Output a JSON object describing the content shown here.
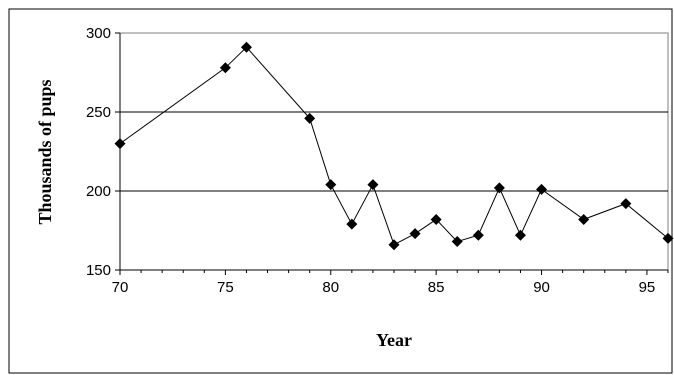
{
  "chart_data": {
    "type": "line",
    "title": "",
    "xlabel": "Year",
    "ylabel": "Thousands of pups",
    "xlim": [
      70,
      96
    ],
    "ylim": [
      150,
      300
    ],
    "x_ticks": [
      70,
      75,
      80,
      85,
      90,
      95
    ],
    "x_tick_labels": [
      "70",
      "75",
      "80",
      "85",
      "90",
      "95"
    ],
    "y_ticks": [
      150,
      200,
      250,
      300
    ],
    "y_tick_labels": [
      "150",
      "200",
      "250",
      "300"
    ],
    "grid": "horizontal",
    "legend": "none",
    "series": [
      {
        "x": [
          70,
          75,
          76,
          79,
          80,
          81,
          82,
          83,
          84,
          85,
          86,
          87,
          88,
          89,
          90,
          92,
          94,
          96
        ],
        "y": [
          230,
          278,
          291,
          246,
          204,
          179,
          204,
          166,
          173,
          182,
          168,
          172,
          202,
          172,
          201,
          182,
          192,
          170
        ],
        "color": "#000000",
        "marker": "diamond"
      }
    ]
  }
}
